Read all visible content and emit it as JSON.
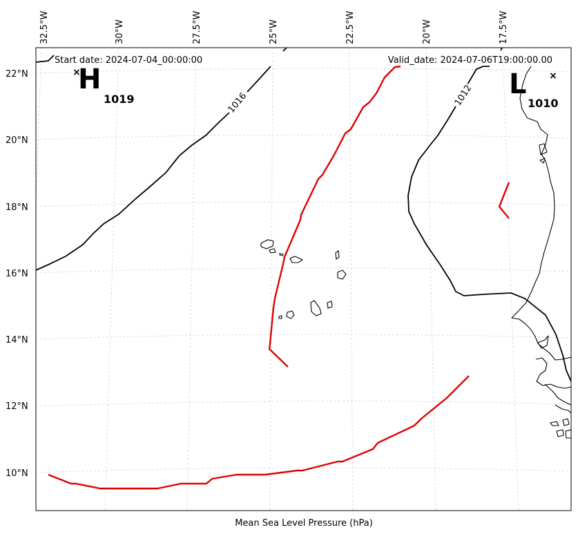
{
  "header": {
    "start_date": "Start date: 2024-07-04_00:00:00",
    "valid_date": "Valid_date: 2024-07-06T19:00:00.00"
  },
  "axes": {
    "xlabel": "Mean Sea Level Pressure (hPa)",
    "lon_ticks": [
      "32.5°W",
      "30°W",
      "27.5°W",
      "25°W",
      "22.5°W",
      "20°W",
      "17.5°W"
    ],
    "lat_ticks": [
      "22°N",
      "20°N",
      "18°N",
      "16°N",
      "14°N",
      "12°N",
      "10°N"
    ]
  },
  "pressure_centers": [
    {
      "letter": "H",
      "value": "1019"
    },
    {
      "letter": "L",
      "value": "1010"
    }
  ],
  "contour_labels": [
    "1016",
    "1012"
  ],
  "colors": {
    "isobar": "#000000",
    "highlight_contour": "#e00000",
    "grid": "#cccccc",
    "coast": "#000000"
  },
  "grid": true
}
